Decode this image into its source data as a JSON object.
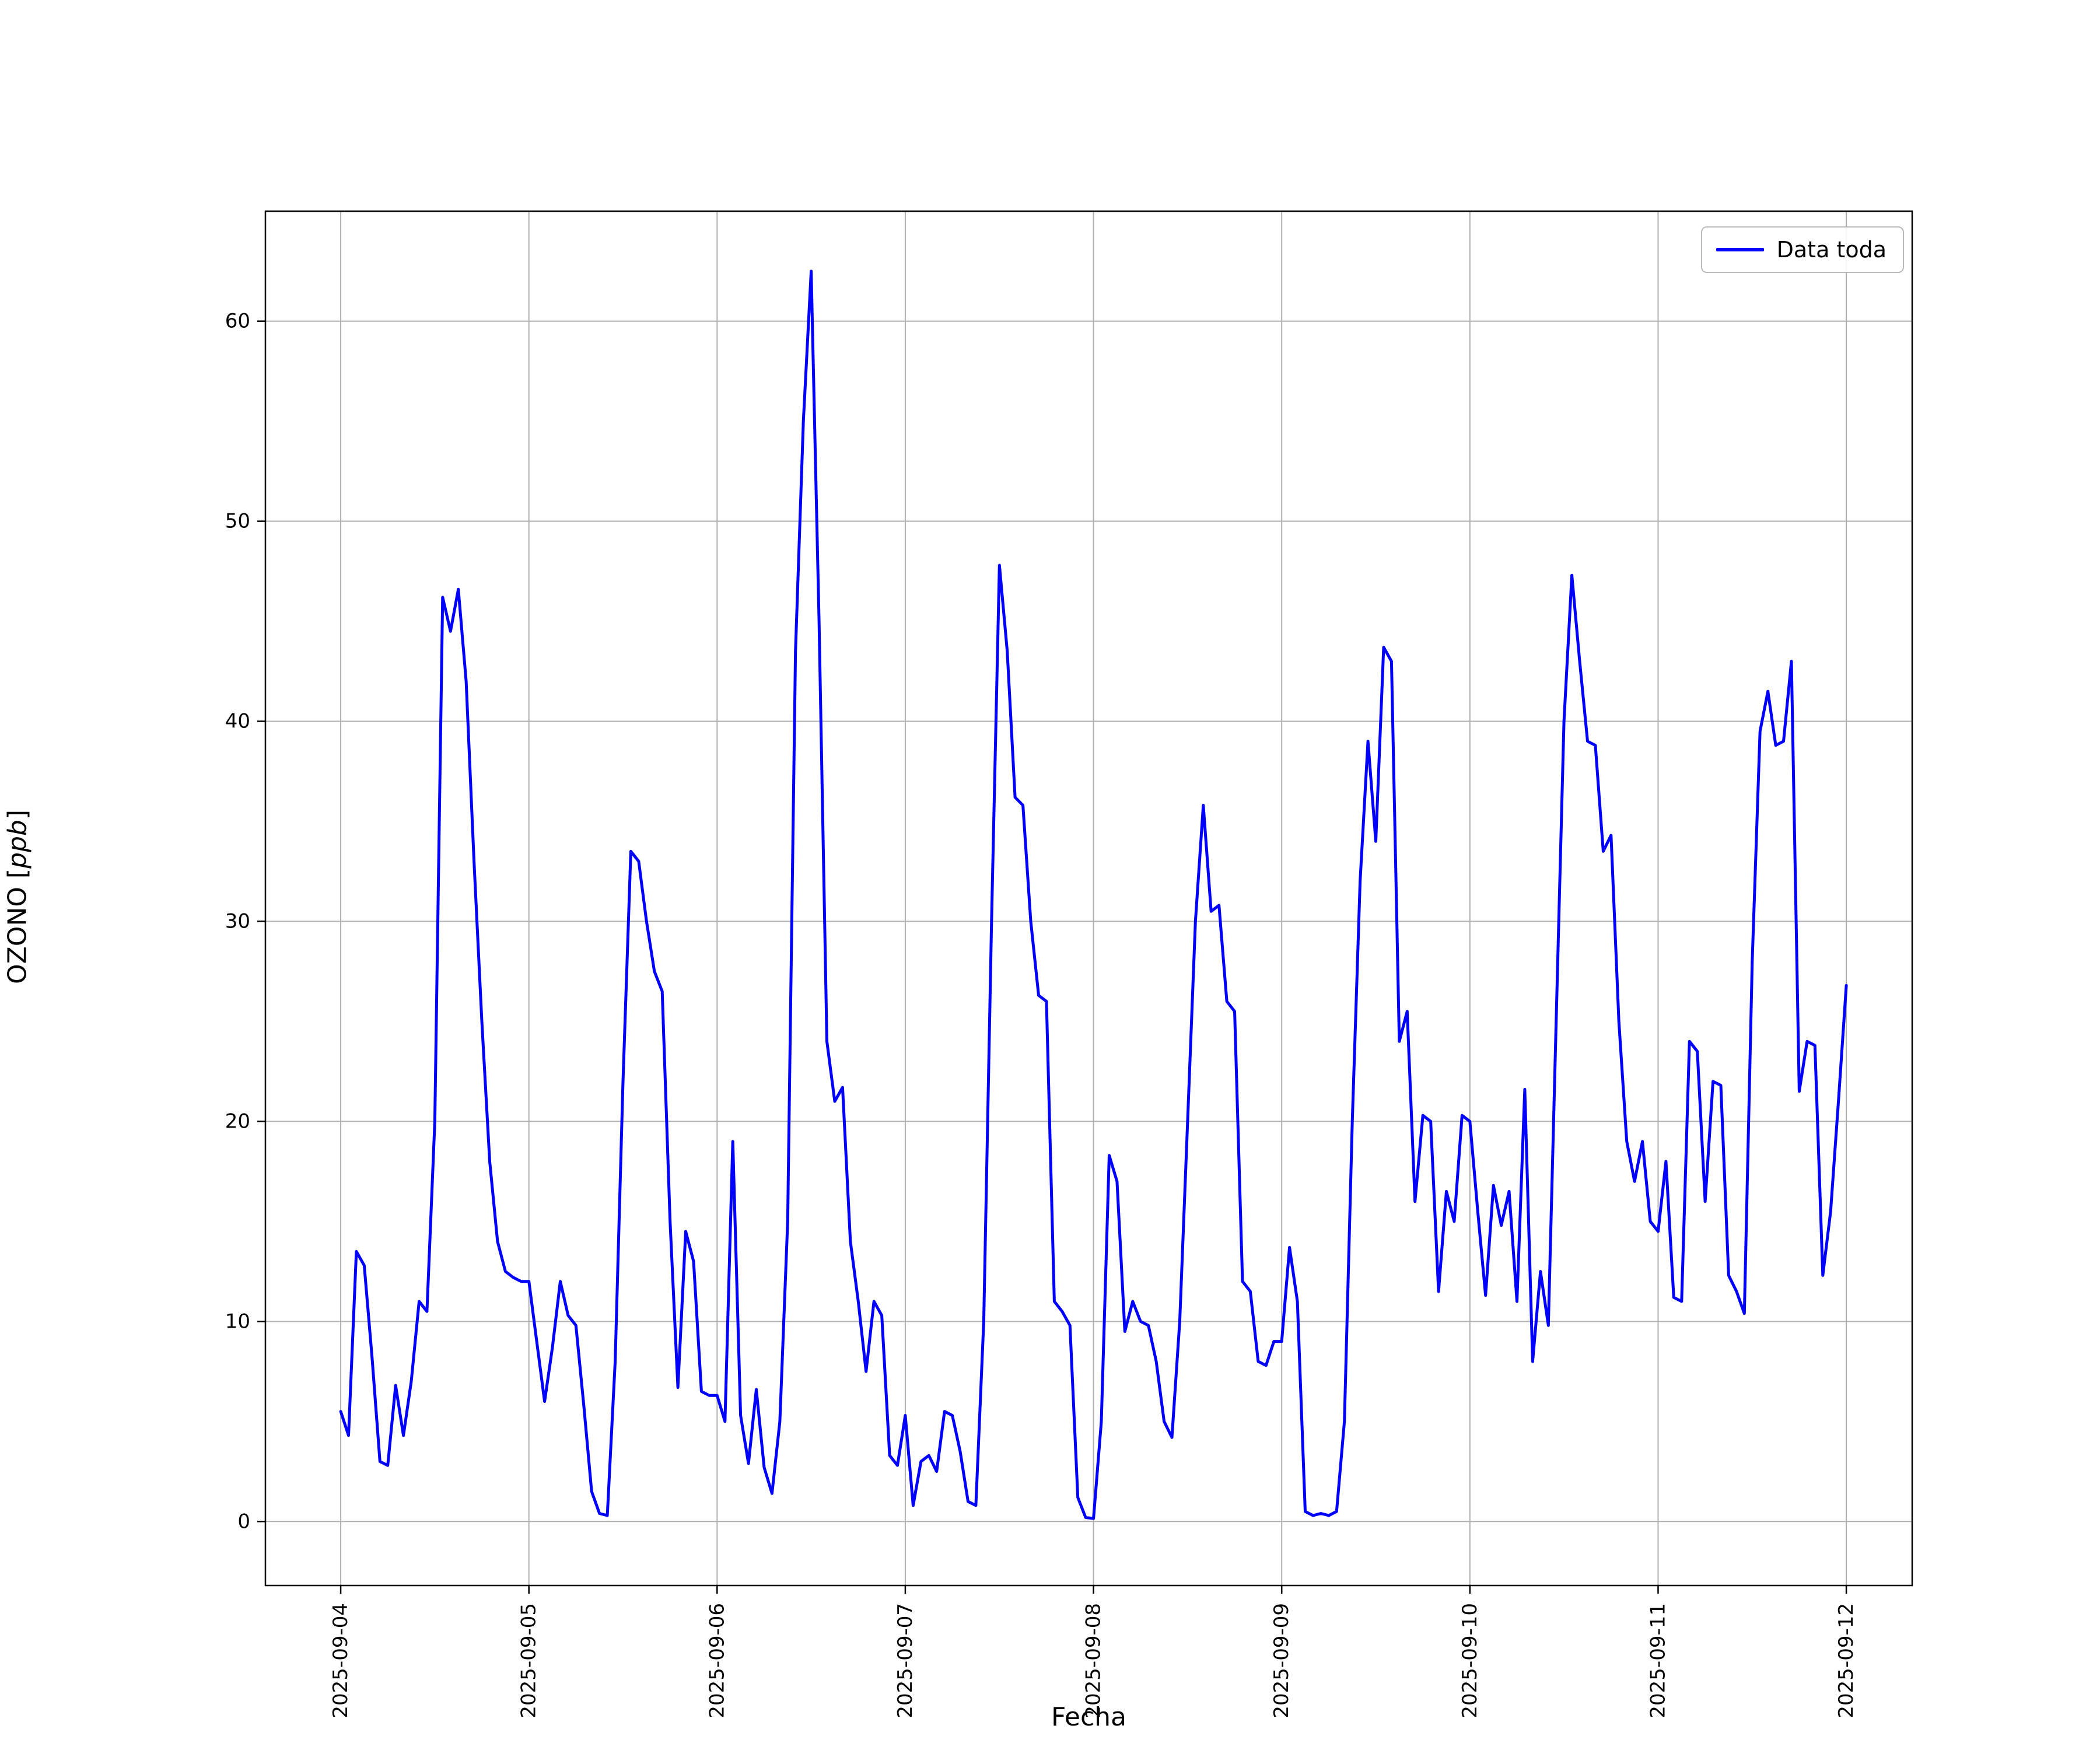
{
  "chart": {
    "legend_label": "Data toda",
    "xlabel": "Fecha",
    "ylabel_name": "OZONO ",
    "ylabel_open": "[",
    "ylabel_unit": "ppb",
    "ylabel_close": "]"
  },
  "chart_data": {
    "type": "line",
    "title": "",
    "xlabel": "Fecha",
    "ylabel": "OZONO [ppb]",
    "grid": true,
    "grid_color": "#b0b0b0",
    "frame_color": "#000000",
    "legend": {
      "location": "upper right",
      "entries": [
        "Data toda"
      ]
    },
    "x_tick_labels": [
      "2025-09-04",
      "2025-09-05",
      "2025-09-06",
      "2025-09-07",
      "2025-09-08",
      "2025-09-09",
      "2025-09-10",
      "2025-09-11",
      "2025-09-12"
    ],
    "x_tick_positions_days": [
      0,
      1,
      2,
      3,
      4,
      5,
      6,
      7,
      8
    ],
    "y_ticks": [
      0,
      10,
      20,
      30,
      40,
      50,
      60
    ],
    "xlim_days": [
      -0.4,
      8.35
    ],
    "ylim": [
      -3.2,
      65.5
    ],
    "x_start_day": 0,
    "sample_interval_hours": 1,
    "series": [
      {
        "name": "Data toda",
        "color": "#0000ff",
        "line_width": 5,
        "values": [
          5.5,
          4.3,
          13.5,
          12.8,
          8.2,
          3.0,
          2.8,
          6.8,
          4.3,
          7.0,
          11.0,
          10.5,
          20.0,
          46.2,
          44.5,
          46.6,
          42.0,
          33.0,
          25.0,
          18.0,
          14.0,
          12.5,
          12.2,
          12.0,
          12.0,
          9.0,
          6.0,
          8.7,
          12.0,
          10.3,
          9.8,
          5.8,
          1.5,
          0.4,
          0.3,
          8.0,
          22.0,
          33.5,
          33.0,
          30.0,
          27.5,
          26.5,
          15.0,
          6.7,
          14.5,
          13.0,
          6.5,
          6.3,
          6.3,
          5.0,
          19.0,
          5.3,
          2.9,
          6.6,
          2.7,
          1.4,
          5.0,
          15.0,
          43.5,
          55.0,
          62.5,
          45.0,
          24.0,
          21.0,
          21.7,
          14.0,
          11.0,
          7.5,
          11.0,
          10.3,
          3.3,
          2.8,
          5.3,
          0.8,
          3.0,
          3.3,
          2.5,
          5.5,
          5.3,
          3.5,
          1.0,
          0.8,
          10.0,
          30.0,
          47.8,
          43.5,
          36.2,
          35.8,
          30.0,
          26.3,
          26.0,
          11.0,
          10.5,
          9.8,
          1.2,
          0.2,
          0.15,
          5.0,
          18.3,
          17.0,
          9.5,
          11.0,
          10.0,
          9.8,
          8.0,
          5.0,
          4.2,
          10.0,
          20.0,
          30.0,
          35.8,
          30.5,
          30.8,
          26.0,
          25.5,
          12.0,
          11.5,
          8.0,
          7.8,
          9.0,
          9.0,
          13.7,
          11.0,
          0.5,
          0.3,
          0.4,
          0.3,
          0.5,
          5.0,
          20.0,
          32.0,
          39.0,
          34.0,
          43.7,
          43.0,
          24.0,
          25.5,
          16.0,
          20.3,
          20.0,
          11.5,
          16.5,
          15.0,
          20.3,
          20.0,
          15.5,
          11.3,
          16.8,
          14.8,
          16.5,
          11.0,
          21.6,
          8.0,
          12.5,
          9.8,
          25.0,
          40.0,
          47.3,
          43.0,
          39.0,
          38.8,
          33.5,
          34.3,
          25.0,
          19.0,
          17.0,
          19.0,
          15.0,
          14.5,
          18.0,
          11.2,
          11.0,
          24.0,
          23.5,
          16.0,
          22.0,
          21.8,
          12.3,
          11.5,
          10.4,
          28.0,
          39.5,
          41.5,
          38.8,
          39.0,
          43.0,
          21.5,
          24.0,
          23.8,
          12.3,
          15.5,
          21.0,
          26.8
        ]
      }
    ]
  }
}
